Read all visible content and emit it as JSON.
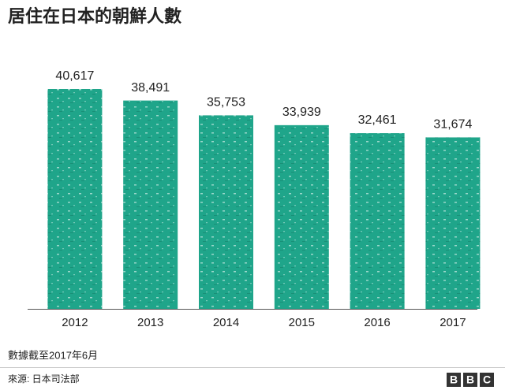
{
  "chart_data": {
    "type": "bar",
    "title": "居住在日本的朝鮮人數",
    "categories": [
      "2012",
      "2013",
      "2014",
      "2015",
      "2016",
      "2017"
    ],
    "values": [
      40617,
      38491,
      35753,
      33939,
      32461,
      31674
    ],
    "value_labels": [
      "40,617",
      "38,491",
      "35,753",
      "33,939",
      "32,461",
      "31,674"
    ],
    "color": "#1fa58a",
    "note": "數據截至2017年6月",
    "source": "來源: 日本司法部",
    "logo": [
      "B",
      "B",
      "C"
    ]
  }
}
